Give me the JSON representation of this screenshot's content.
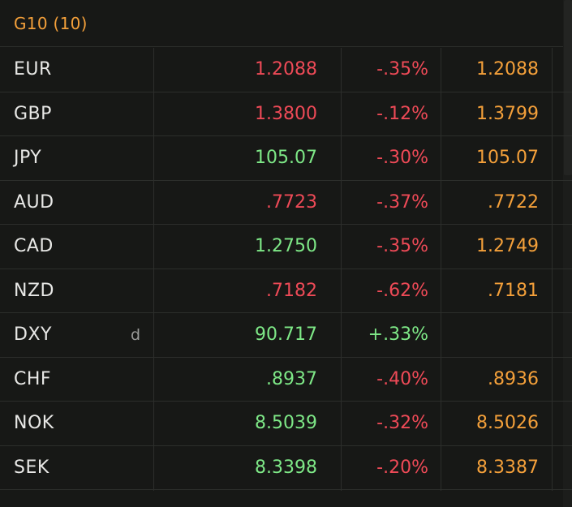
{
  "header": {
    "title": "G10 (10)"
  },
  "colors": {
    "background": "#171816",
    "accent_orange": "#f4a03a",
    "up_green": "#7ee887",
    "down_red": "#ee4a57",
    "grid": "#2c2e2b"
  },
  "rows": [
    {
      "ticker": "EUR",
      "flag": "",
      "last": "1.2088",
      "last_dir": "down",
      "chg": "-.35%",
      "chg_dir": "down",
      "bid": "1.2088"
    },
    {
      "ticker": "GBP",
      "flag": "",
      "last": "1.3800",
      "last_dir": "down",
      "chg": "-.12%",
      "chg_dir": "down",
      "bid": "1.3799"
    },
    {
      "ticker": "JPY",
      "flag": "",
      "last": "105.07",
      "last_dir": "up",
      "chg": "-.30%",
      "chg_dir": "down",
      "bid": "105.07"
    },
    {
      "ticker": "AUD",
      "flag": "",
      "last": ".7723",
      "last_dir": "down",
      "chg": "-.37%",
      "chg_dir": "down",
      "bid": ".7722"
    },
    {
      "ticker": "CAD",
      "flag": "",
      "last": "1.2750",
      "last_dir": "up",
      "chg": "-.35%",
      "chg_dir": "down",
      "bid": "1.2749"
    },
    {
      "ticker": "NZD",
      "flag": "",
      "last": ".7182",
      "last_dir": "down",
      "chg": "-.62%",
      "chg_dir": "down",
      "bid": ".7181"
    },
    {
      "ticker": "DXY",
      "flag": "d",
      "last": "90.717",
      "last_dir": "up",
      "chg": "+.33%",
      "chg_dir": "up",
      "bid": ""
    },
    {
      "ticker": "CHF",
      "flag": "",
      "last": ".8937",
      "last_dir": "up",
      "chg": "-.40%",
      "chg_dir": "down",
      "bid": ".8936"
    },
    {
      "ticker": "NOK",
      "flag": "",
      "last": "8.5039",
      "last_dir": "up",
      "chg": "-.32%",
      "chg_dir": "down",
      "bid": "8.5026"
    },
    {
      "ticker": "SEK",
      "flag": "",
      "last": "8.3398",
      "last_dir": "up",
      "chg": "-.20%",
      "chg_dir": "down",
      "bid": "8.3387"
    }
  ]
}
